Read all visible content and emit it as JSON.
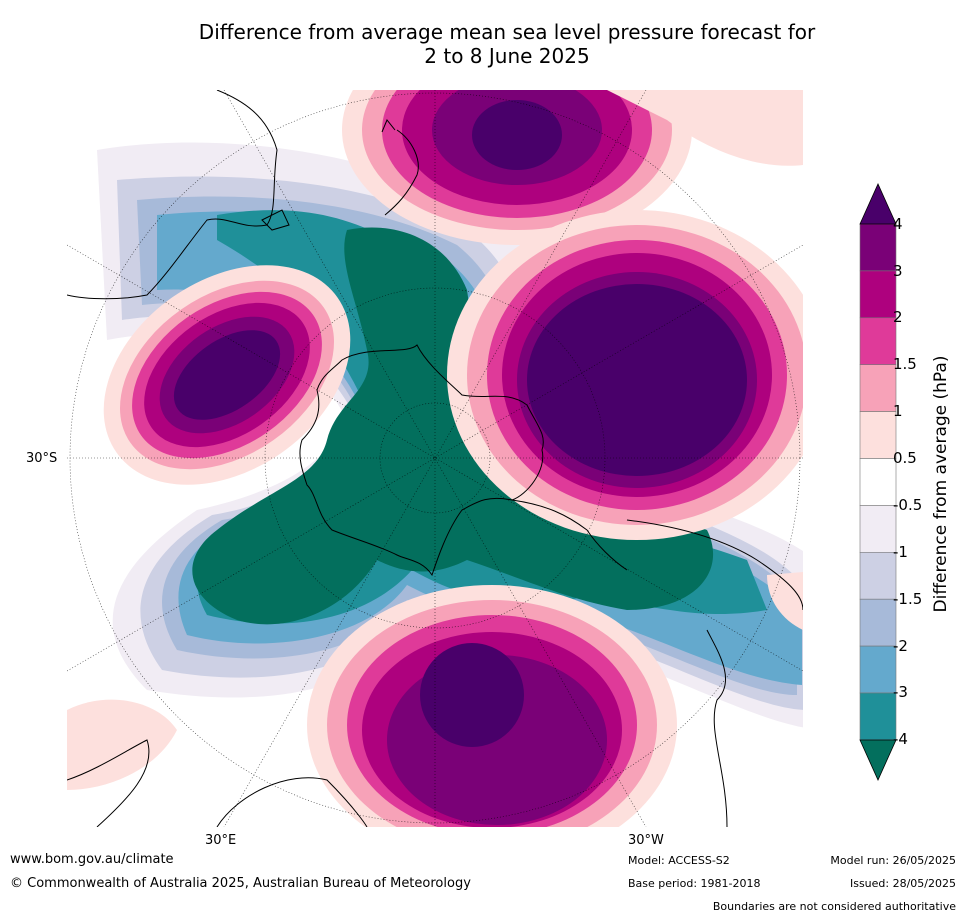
{
  "title_line1": "Difference from average mean sea level pressure forecast for",
  "title_line2": "2 to 8 June 2025",
  "map": {
    "projection": "south-polar-stereographic",
    "lat_label": "30°S",
    "lon_labels": {
      "east": "30°E",
      "west": "30°W"
    },
    "land_color": "#000000"
  },
  "colorbar": {
    "label": "Difference from average (hPa)",
    "tick_labels": [
      "-4",
      "-3",
      "-2",
      "-1.5",
      "-1",
      "-0.5",
      "0.5",
      "1",
      "1.5",
      "2",
      "3",
      "4"
    ],
    "colors": {
      "below_-4": "#036f5d",
      "-4_-3": "#1f9099",
      "-3_-2": "#64a9cd",
      "-2_-1.5": "#a7bad9",
      "-1.5_-1": "#cdd0e4",
      "-1_-0.5": "#f1ecf4",
      "-0.5_0.5": "#ffffff",
      "0.5_1": "#fde0dd",
      "1_1.5": "#f7a2b8",
      "1.5_2": "#df3a99",
      "2_3": "#ae017e",
      "3_4": "#7a0177",
      "above_4": "#49006a"
    }
  },
  "footer": {
    "website": "www.bom.gov.au/climate",
    "copyright": "© Commonwealth of Australia 2025, Australian Bureau of Meteorology",
    "model": "Model: ACCESS-S2",
    "base_period": "Base period: 1981-2018",
    "model_run": "Model run: 26/05/2025",
    "issued": "Issued: 28/05/2025",
    "disclaimer": "Boundaries are not considered authoritative"
  }
}
